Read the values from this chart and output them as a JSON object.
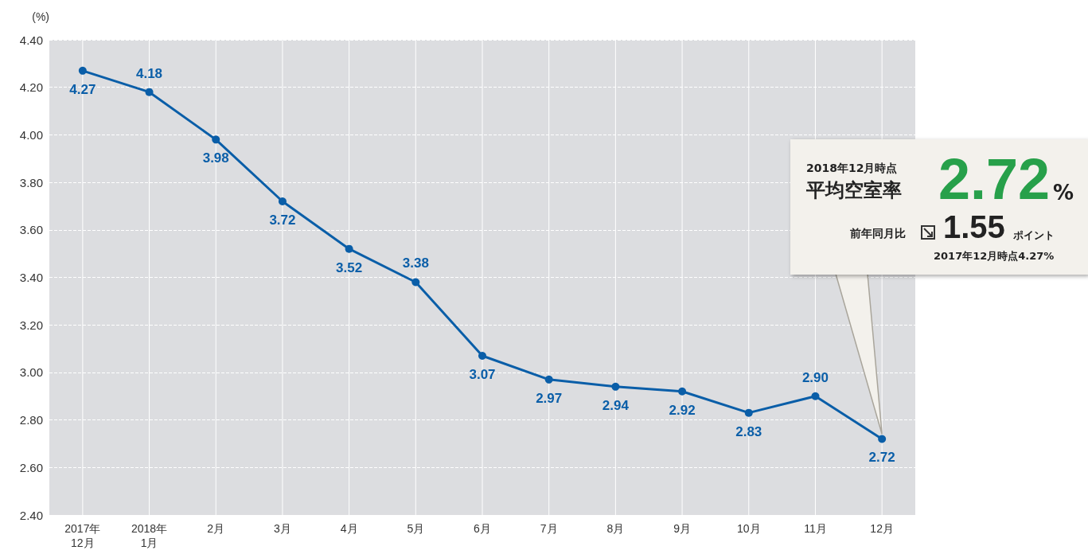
{
  "chart_data": {
    "type": "line",
    "ylabel": "(%)",
    "categories": [
      "2017年\n12月",
      "2018年\n1月",
      "2月",
      "3月",
      "4月",
      "5月",
      "6月",
      "7月",
      "8月",
      "9月",
      "10月",
      "11月",
      "12月"
    ],
    "series": [
      {
        "color": "#0a5ea8",
        "values": [
          4.27,
          4.18,
          3.98,
          3.72,
          3.52,
          3.38,
          3.07,
          2.97,
          2.94,
          2.92,
          2.83,
          2.9,
          2.72
        ]
      }
    ],
    "ylim": [
      2.4,
      4.4
    ],
    "yticks": [
      {
        "value": 2.4,
        "label": "2.40"
      },
      {
        "value": 2.6,
        "label": "2.60"
      },
      {
        "value": 2.8,
        "label": "2.80"
      },
      {
        "value": 3,
        "label": "3.00"
      },
      {
        "value": 3.2,
        "label": "3.20"
      },
      {
        "value": 3.4,
        "label": "3.40"
      },
      {
        "value": 3.6,
        "label": "3.60"
      },
      {
        "value": 3.8,
        "label": "3.80"
      },
      {
        "value": 4,
        "label": "4.00"
      },
      {
        "value": 4.2,
        "label": "4.20"
      },
      {
        "value": 4.4,
        "label": "4.40"
      }
    ],
    "grid": true,
    "marker": "circle",
    "line_style": "solid",
    "value_labels": [
      "4.27",
      "4.18",
      "3.98",
      "3.72",
      "3.52",
      "3.38",
      "3.07",
      "2.97",
      "2.94",
      "2.92",
      "2.83",
      "2.90",
      "2.72"
    ],
    "annotations": [
      "2018年12月時点",
      "平均空室率",
      "2.72",
      "%",
      "前年同月比",
      "1.55",
      "ポイント",
      "2017年12月時点4.27%"
    ]
  }
}
